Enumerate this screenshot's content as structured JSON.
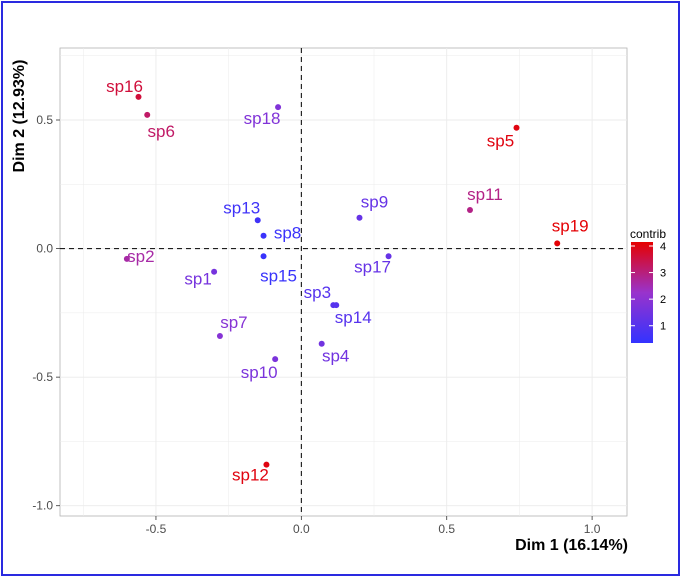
{
  "chart_data": {
    "type": "scatter",
    "xlabel": "Dim 1 (16.14%)",
    "ylabel": "Dim 2 (12.93%)",
    "xlim": [
      -0.83,
      1.12
    ],
    "ylim": [
      -1.04,
      0.78
    ],
    "x_ticks": [
      -0.5,
      0.0,
      0.5,
      1.0
    ],
    "x_tick_labels": [
      "-0.5",
      "0.0",
      "0.5",
      "1.0"
    ],
    "y_ticks": [
      -1.0,
      -0.5,
      0.0,
      0.5
    ],
    "y_tick_labels": [
      "-1.0",
      "-0.5",
      "0.0",
      "0.5"
    ],
    "grid": true,
    "reference_lines": [
      {
        "axis": "x",
        "value": 0,
        "style": "dashed"
      },
      {
        "axis": "y",
        "value": 0,
        "style": "dashed"
      }
    ],
    "color_scale": {
      "title": "contrib",
      "min": 0.35,
      "max": 4.15,
      "ticks": [
        1,
        2,
        3,
        4
      ],
      "tick_labels": [
        "1",
        "2",
        "3",
        "4"
      ],
      "low_color": "#3333ff",
      "mid_color": "#9933cc",
      "high_color": "#e60000",
      "legend_position": "right"
    },
    "points": [
      {
        "label": "sp1",
        "x": -0.3,
        "y": -0.09,
        "contrib": 1.6
      },
      {
        "label": "sp2",
        "x": -0.6,
        "y": -0.04,
        "contrib": 2.6
      },
      {
        "label": "sp3",
        "x": 0.11,
        "y": -0.22,
        "contrib": 1.0
      },
      {
        "label": "sp4",
        "x": 0.07,
        "y": -0.37,
        "contrib": 1.5
      },
      {
        "label": "sp5",
        "x": 0.74,
        "y": 0.47,
        "contrib": 4.0
      },
      {
        "label": "sp6",
        "x": -0.53,
        "y": 0.52,
        "contrib": 3.2
      },
      {
        "label": "sp7",
        "x": -0.28,
        "y": -0.34,
        "contrib": 1.9
      },
      {
        "label": "sp8",
        "x": -0.13,
        "y": 0.05,
        "contrib": 0.5
      },
      {
        "label": "sp9",
        "x": 0.2,
        "y": 0.12,
        "contrib": 1.3
      },
      {
        "label": "sp10",
        "x": -0.09,
        "y": -0.43,
        "contrib": 1.7
      },
      {
        "label": "sp11",
        "x": 0.58,
        "y": 0.15,
        "contrib": 2.9
      },
      {
        "label": "sp12",
        "x": -0.12,
        "y": -0.84,
        "contrib": 4.0
      },
      {
        "label": "sp13",
        "x": -0.15,
        "y": 0.11,
        "contrib": 0.6
      },
      {
        "label": "sp14",
        "x": 0.12,
        "y": -0.22,
        "contrib": 1.0
      },
      {
        "label": "sp15",
        "x": -0.13,
        "y": -0.03,
        "contrib": 0.45
      },
      {
        "label": "sp16",
        "x": -0.56,
        "y": 0.59,
        "contrib": 3.6
      },
      {
        "label": "sp17",
        "x": 0.3,
        "y": -0.03,
        "contrib": 1.3
      },
      {
        "label": "sp18",
        "x": -0.08,
        "y": 0.55,
        "contrib": 1.8
      },
      {
        "label": "sp19",
        "x": 0.88,
        "y": 0.02,
        "contrib": 4.1
      }
    ]
  }
}
